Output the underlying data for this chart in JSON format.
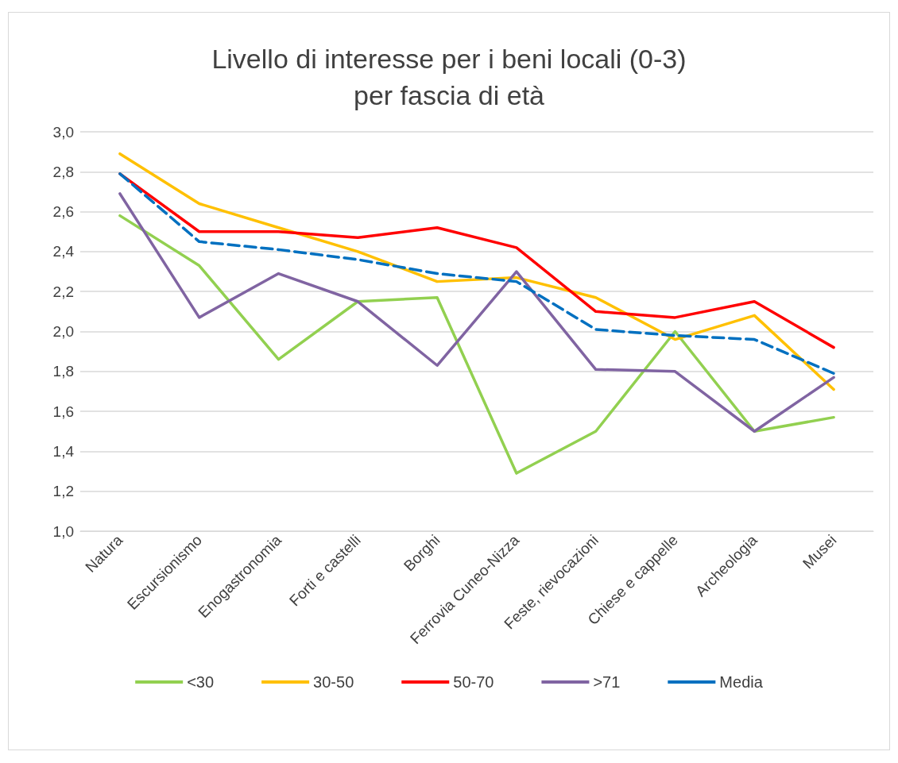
{
  "chart_data": {
    "type": "line",
    "title": "Livello di interesse per i beni locali (0-3)\nper fascia di età",
    "categories": [
      "Natura",
      "Escursionismo",
      "Enogastronomia",
      "Forti e castelli",
      "Borghi",
      "Ferrovia Cuneo-Nizza",
      "Feste, rievocazioni",
      "Chiese e cappelle",
      "Archeologia",
      "Musei"
    ],
    "series": [
      {
        "name": "<30",
        "color": "#92d050",
        "values": [
          2.58,
          2.33,
          1.86,
          2.15,
          2.17,
          1.29,
          1.5,
          2.0,
          1.5,
          1.57
        ]
      },
      {
        "name": "30-50",
        "color": "#ffc000",
        "values": [
          2.89,
          2.64,
          2.52,
          2.4,
          2.25,
          2.27,
          2.17,
          1.96,
          2.08,
          1.71
        ]
      },
      {
        "name": "50-70",
        "color": "#ff0000",
        "values": [
          2.79,
          2.5,
          2.5,
          2.47,
          2.52,
          2.42,
          2.1,
          2.07,
          2.15,
          1.92
        ]
      },
      {
        "name": ">71",
        "color": "#8064a2",
        "values": [
          2.69,
          2.07,
          2.29,
          2.15,
          1.83,
          2.3,
          1.81,
          1.8,
          1.5,
          1.77
        ]
      },
      {
        "name": "Media",
        "color": "#0070c0",
        "line_style": "dashed",
        "values": [
          2.79,
          2.45,
          2.41,
          2.36,
          2.29,
          2.25,
          2.01,
          1.98,
          1.96,
          1.79
        ]
      }
    ],
    "ylim": [
      1.0,
      3.0
    ],
    "yticks": [
      {
        "value": 1.0,
        "label": "1,0"
      },
      {
        "value": 1.2,
        "label": "1,2"
      },
      {
        "value": 1.4,
        "label": "1,4"
      },
      {
        "value": 1.6,
        "label": "1,6"
      },
      {
        "value": 1.8,
        "label": "1,8"
      },
      {
        "value": 2.0,
        "label": "2,0"
      },
      {
        "value": 2.2,
        "label": "2,2"
      },
      {
        "value": 2.4,
        "label": "2,4"
      },
      {
        "value": 2.6,
        "label": "2,6"
      },
      {
        "value": 2.8,
        "label": "2,8"
      },
      {
        "value": 3.0,
        "label": "3,0"
      }
    ],
    "grid": "y",
    "legend": "bottom",
    "marker": "none",
    "line_style": "solid"
  }
}
